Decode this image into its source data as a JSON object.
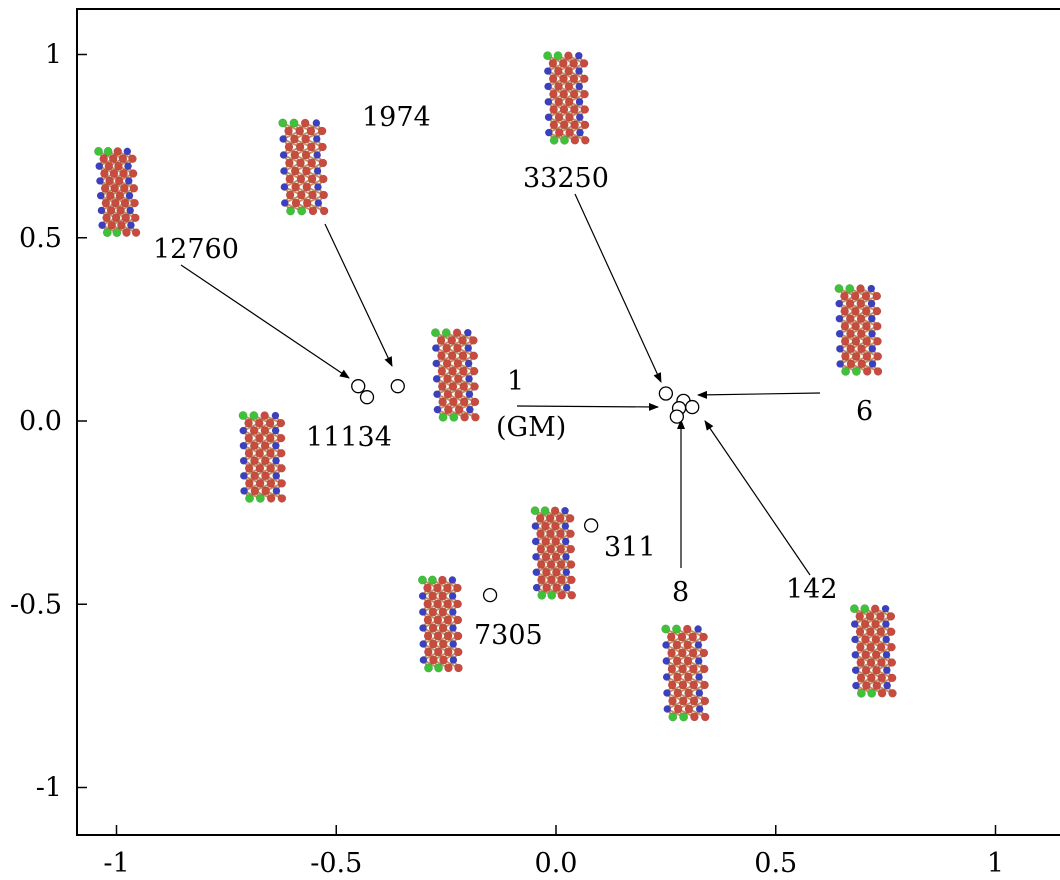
{
  "chart_data": {
    "type": "scatter",
    "title": "",
    "xlabel": "",
    "ylabel": "",
    "xlim": [
      -1.1,
      1.1
    ],
    "ylim": [
      -1.12,
      1.12
    ],
    "x_ticks": [
      {
        "value": -1,
        "label": "-1"
      },
      {
        "value": -0.5,
        "label": "-0.5"
      },
      {
        "value": 0,
        "label": "0.0"
      },
      {
        "value": 0.5,
        "label": "0.5"
      },
      {
        "value": 1,
        "label": "1"
      }
    ],
    "y_ticks": [
      {
        "value": 1,
        "label": "1"
      },
      {
        "value": 0.5,
        "label": "0.5"
      },
      {
        "value": 0,
        "label": "0.0"
      },
      {
        "value": -0.5,
        "label": "-0.5"
      },
      {
        "value": -1,
        "label": "-1"
      }
    ],
    "grid": false,
    "legend": "none",
    "marker_color": "#000000",
    "points": [
      {
        "x": -0.45,
        "y": 0.095
      },
      {
        "x": -0.43,
        "y": 0.065
      },
      {
        "x": -0.36,
        "y": 0.095
      },
      {
        "x": 0.25,
        "y": 0.075
      },
      {
        "x": 0.29,
        "y": 0.055
      },
      {
        "x": 0.28,
        "y": 0.035
      },
      {
        "x": 0.31,
        "y": 0.038
      },
      {
        "x": 0.275,
        "y": 0.012
      },
      {
        "x": 0.08,
        "y": -0.285
      },
      {
        "x": -0.15,
        "y": -0.475
      }
    ],
    "annotations": [
      {
        "text": "12760"
      },
      {
        "text": "1974"
      },
      {
        "text": "11134"
      },
      {
        "text": "1"
      },
      {
        "text": "(GM)"
      },
      {
        "text": "33250"
      },
      {
        "text": "6"
      },
      {
        "text": "8"
      },
      {
        "text": "142"
      },
      {
        "text": "311"
      },
      {
        "text": "7305"
      }
    ],
    "structure_colors": {
      "body": "#c94a3f",
      "edge": "#3b3fc2",
      "end": "#3fc23a",
      "bond": "#b8733f"
    }
  }
}
